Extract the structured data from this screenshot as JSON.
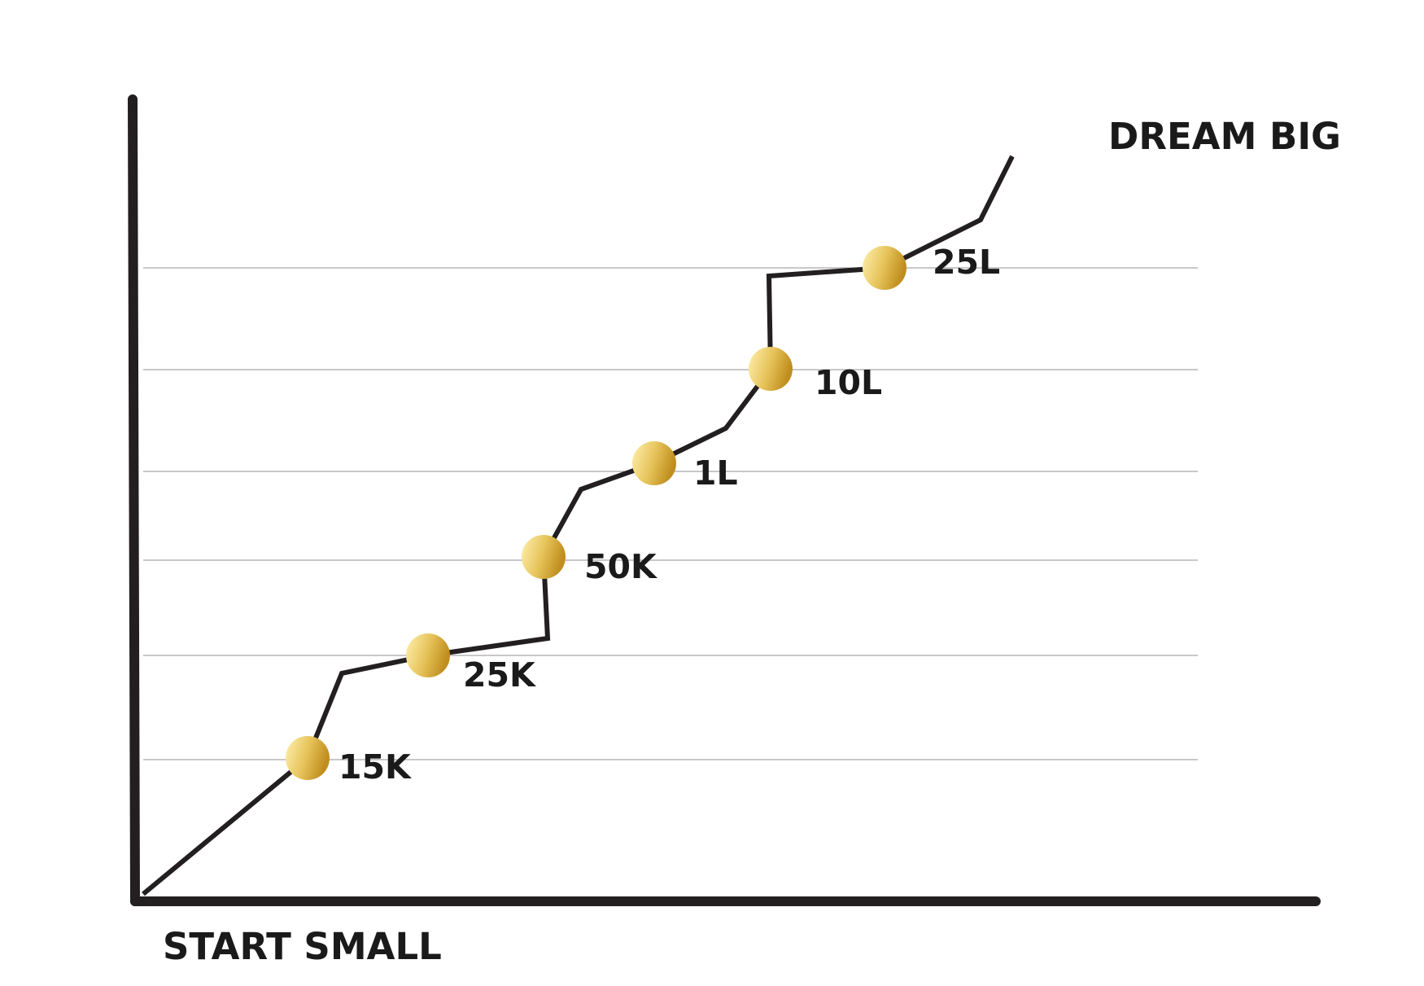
{
  "chart_data": {
    "type": "line",
    "title": "",
    "end_label": "DREAM BIG",
    "start_label": "START SMALL",
    "milestones": [
      {
        "label": "15K"
      },
      {
        "label": "25K"
      },
      {
        "label": "50K"
      },
      {
        "label": "1L"
      },
      {
        "label": "10L"
      },
      {
        "label": "25L"
      }
    ],
    "grid": true,
    "marker_color_light": "#fff1b0",
    "marker_color_dark": "#c08e1e",
    "line_color": "#231f20"
  }
}
